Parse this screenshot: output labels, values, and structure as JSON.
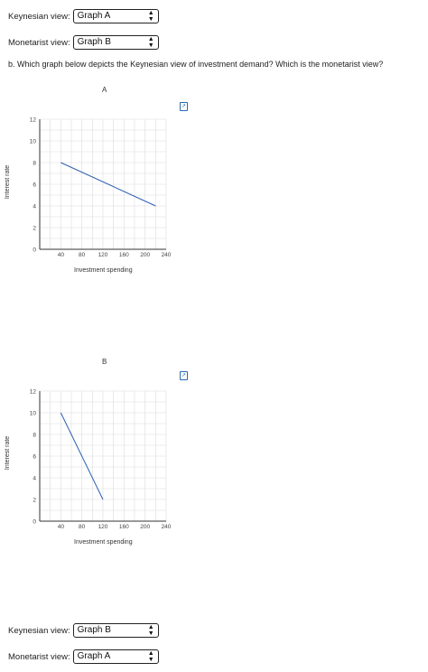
{
  "top": {
    "keynesian": {
      "label": "Keynesian view:",
      "value": "Graph A"
    },
    "monetarist": {
      "label": "Monetarist view:",
      "value": "Graph B"
    }
  },
  "question": "b. Which graph below depicts the Keynesian view of investment demand? Which is the monetarist view?",
  "bottom": {
    "keynesian": {
      "label": "Keynesian view:",
      "value": "Graph B"
    },
    "monetarist": {
      "label": "Monetarist view:",
      "value": "Graph A"
    }
  },
  "expand_icon": "expand-graph-icon",
  "colors": {
    "line": "#2d5fb0",
    "grid": "#dddddd",
    "select_border": "#222222",
    "icon": "#2a6ab0"
  },
  "chart_data": [
    {
      "type": "line",
      "title": "A",
      "xlabel": "Investment spending",
      "ylabel": "Interest rate",
      "xlim": [
        0,
        240
      ],
      "ylim": [
        0,
        12
      ],
      "xticks": [
        40,
        80,
        120,
        160,
        200,
        240
      ],
      "yticks": [
        0,
        2,
        4,
        6,
        8,
        10,
        12
      ],
      "grid": true,
      "series": [
        {
          "x": [
            40,
            220
          ],
          "y": [
            8,
            4
          ]
        }
      ]
    },
    {
      "type": "line",
      "title": "B",
      "xlabel": "Investment spending",
      "ylabel": "Interest rate",
      "xlim": [
        0,
        240
      ],
      "ylim": [
        0,
        12
      ],
      "xticks": [
        40,
        80,
        120,
        160,
        200,
        240
      ],
      "yticks": [
        0,
        2,
        4,
        6,
        8,
        10,
        12
      ],
      "grid": true,
      "series": [
        {
          "x": [
            40,
            120
          ],
          "y": [
            10,
            2
          ]
        }
      ]
    }
  ]
}
